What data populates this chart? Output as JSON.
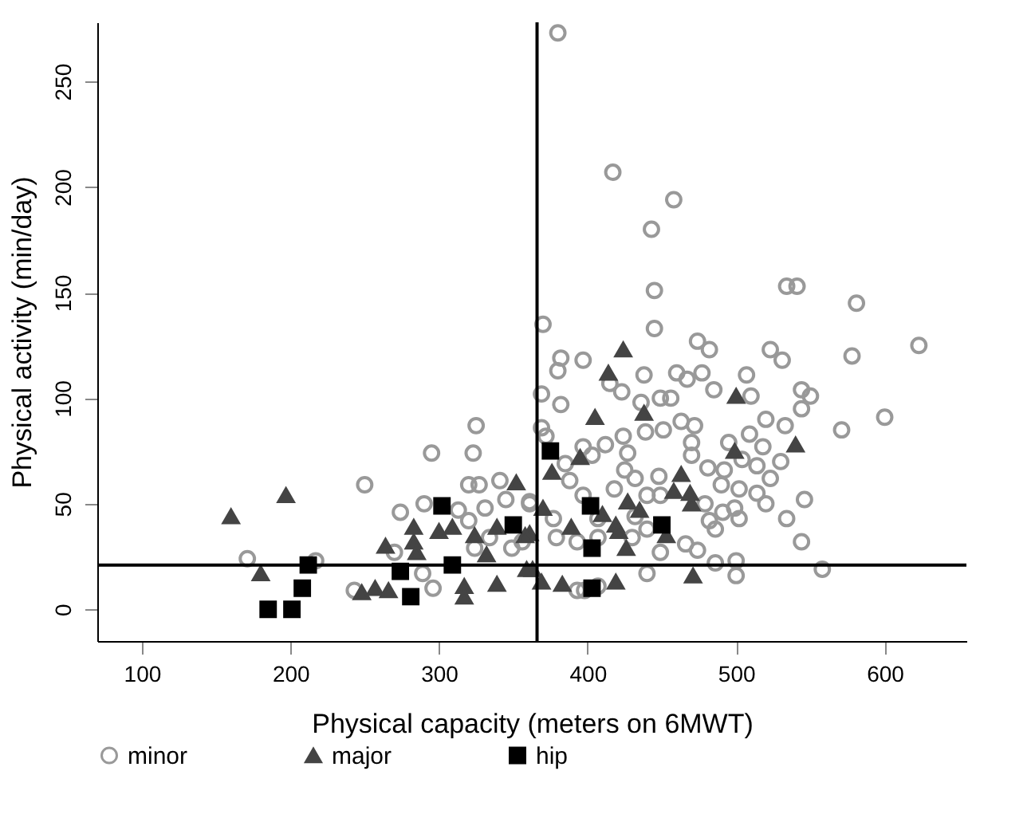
{
  "chart_data": {
    "type": "scatter",
    "xlabel": "Physical capacity (meters on 6MWT)",
    "ylabel": "Physical activity (min/day)",
    "xlim": [
      70,
      655
    ],
    "ylim": [
      -15,
      278
    ],
    "xticks": [
      100,
      200,
      300,
      400,
      500,
      600
    ],
    "yticks": [
      0,
      50,
      100,
      150,
      200,
      250
    ],
    "grid": false,
    "legend": "bottom",
    "ref_lines": [
      {
        "axis": "x",
        "value": 366,
        "color": "#000000"
      },
      {
        "axis": "y",
        "value": 21,
        "color": "#000000"
      }
    ],
    "series": [
      {
        "name": "minor",
        "color": "#999999",
        "marker": "circle",
        "x": [
          380,
          417,
          458,
          443,
          445,
          534,
          541,
          581,
          370,
          445,
          382,
          474,
          482,
          523,
          531,
          578,
          623,
          438,
          460,
          467,
          477,
          415,
          423,
          485,
          507,
          369,
          382,
          436,
          449,
          456,
          510,
          544,
          550,
          544,
          600,
          571,
          369,
          439,
          451,
          463,
          472,
          424,
          372,
          495,
          509,
          520,
          533,
          470,
          412,
          397,
          403,
          427,
          470,
          504,
          518,
          530,
          481,
          492,
          514,
          385,
          425,
          448,
          432,
          523,
          490,
          502,
          514,
          520,
          546,
          388,
          397,
          418,
          440,
          449,
          479,
          499,
          482,
          491,
          502,
          534,
          486,
          432,
          407,
          377,
          379,
          393,
          407,
          430,
          440,
          449,
          466,
          474,
          544,
          361,
          486,
          500,
          500,
          558,
          440,
          393,
          398,
          407,
          171,
          217,
          250,
          243,
          295,
          323,
          274,
          290,
          270,
          289,
          296,
          320,
          327,
          341,
          313,
          331,
          345,
          320,
          334,
          349,
          324,
          356,
          361,
          325,
          397,
          380
        ],
        "values": [
          273,
          207,
          194,
          180,
          151,
          153,
          153,
          145,
          135,
          133,
          119,
          127,
          123,
          123,
          118,
          120,
          125,
          111,
          112,
          109,
          112,
          107,
          103,
          104,
          111,
          102,
          97,
          98,
          100,
          100,
          101,
          104,
          101,
          95,
          91,
          85,
          86,
          84,
          85,
          89,
          87,
          82,
          82,
          79,
          83,
          90,
          87,
          79,
          78,
          77,
          73,
          74,
          73,
          71,
          77,
          70,
          67,
          66,
          68,
          69,
          66,
          63,
          62,
          62,
          59,
          57,
          55,
          50,
          52,
          61,
          54,
          57,
          54,
          54,
          50,
          48,
          42,
          46,
          43,
          43,
          38,
          44,
          43,
          43,
          34,
          32,
          34,
          34,
          38,
          27,
          31,
          28,
          32,
          50,
          22,
          23,
          16,
          19,
          17,
          9,
          9,
          11,
          24,
          23,
          59,
          9,
          74,
          74,
          46,
          50,
          27,
          17,
          10,
          59,
          59,
          61,
          47,
          48,
          52,
          42,
          34,
          29,
          29,
          32,
          51,
          87,
          118,
          113
        ]
      },
      {
        "name": "major",
        "color": "#444444",
        "marker": "triangle",
        "x": [
          160,
          197,
          180,
          248,
          257,
          266,
          264,
          283,
          283,
          285,
          300,
          309,
          317,
          317,
          324,
          332,
          339,
          339,
          352,
          361,
          363,
          424,
          414,
          500,
          405,
          438,
          395,
          499,
          540,
          376,
          463,
          458,
          469,
          470,
          427,
          435,
          370,
          389,
          410,
          419,
          421,
          426,
          453,
          358,
          369,
          383,
          419,
          471,
          359
        ],
        "values": [
          44,
          54,
          17,
          8,
          10,
          9,
          30,
          39,
          32,
          27,
          37,
          39,
          11,
          6,
          35,
          26,
          39,
          12,
          60,
          36,
          19,
          123,
          112,
          101,
          91,
          93,
          72,
          75,
          78,
          65,
          64,
          56,
          55,
          50,
          51,
          47,
          48,
          39,
          45,
          40,
          37,
          29,
          35,
          35,
          13,
          12,
          13,
          16,
          19
        ]
      },
      {
        "name": "hip",
        "color": "#000000",
        "marker": "square",
        "x": [
          185,
          201,
          208,
          212,
          274,
          281,
          302,
          309,
          350,
          375,
          402,
          403,
          403,
          450
        ],
        "values": [
          0,
          0,
          10,
          21,
          18,
          6,
          49,
          21,
          40,
          75,
          49,
          29,
          10,
          40
        ]
      }
    ]
  }
}
